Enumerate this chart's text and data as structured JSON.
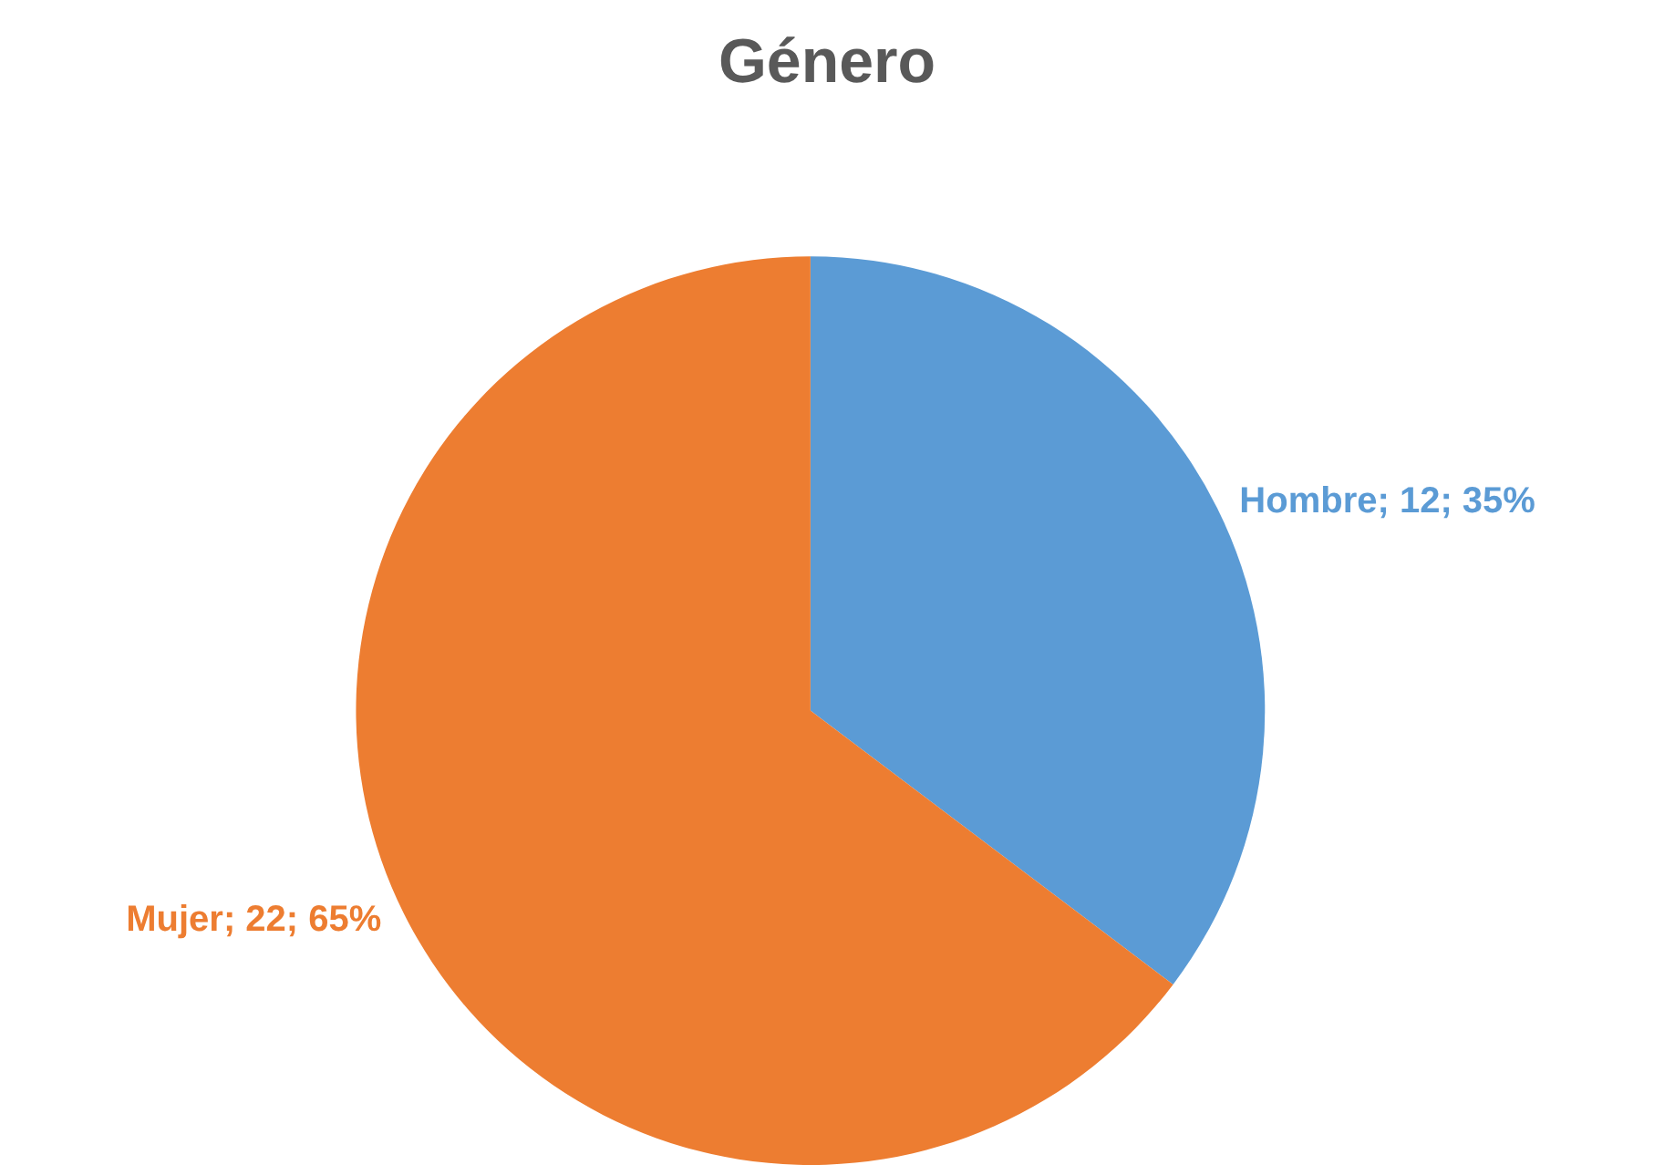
{
  "chart_data": {
    "type": "pie",
    "title": "Género",
    "categories": [
      "Hombre",
      "Mujer"
    ],
    "values": [
      12,
      22
    ],
    "colors": [
      "#5b9bd5",
      "#ed7d31"
    ],
    "value_labels": [
      "12; 35%",
      "22; 65%"
    ],
    "legend": false
  }
}
